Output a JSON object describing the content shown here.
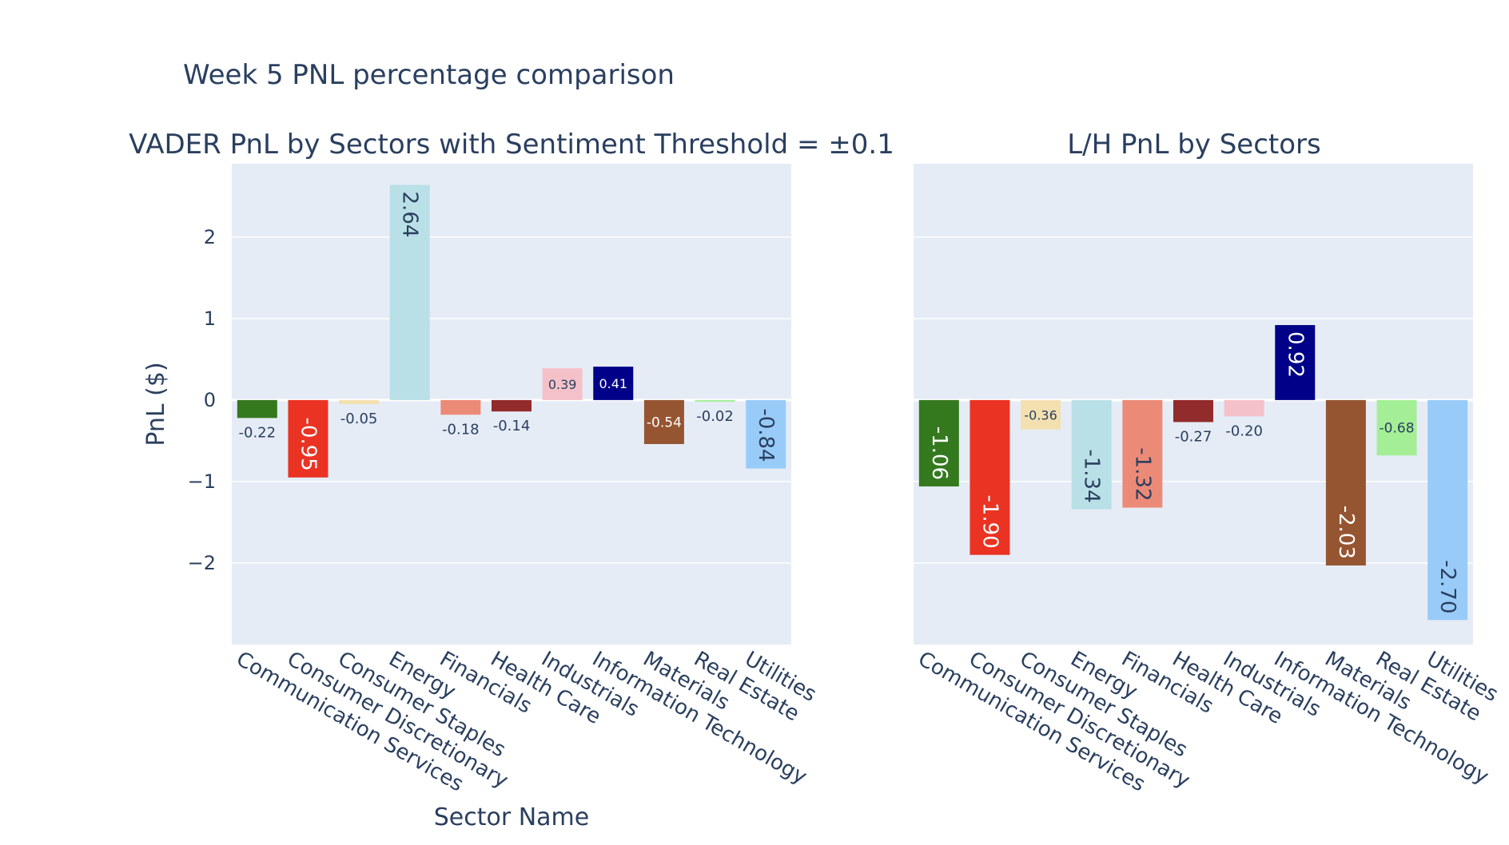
{
  "figure": {
    "title": "Week 5 PNL percentage comparison",
    "colors": {
      "plot_bg": "#e5ecf6",
      "grid": "#ffffff",
      "text": "#2a3f5f"
    }
  },
  "chart_data": [
    {
      "type": "bar",
      "title": "VADER PnL by Sectors with Sentiment Threshold = ±0.1",
      "xlabel": "Sector Name",
      "ylabel": "PnL ($)",
      "ylim": [
        -3,
        2.9
      ],
      "yticks": [
        -2,
        -1,
        0,
        1,
        2
      ],
      "ytick_labels": [
        "−2",
        "−1",
        "0",
        "1",
        "2"
      ],
      "grid": true,
      "categories": [
        "Communication Services",
        "Consumer Discretionary",
        "Consumer Staples",
        "Energy",
        "Financials",
        "Health Care",
        "Industrials",
        "Information Technology",
        "Materials",
        "Real Estate",
        "Utilities"
      ],
      "values": [
        -0.22,
        -0.95,
        -0.05,
        2.64,
        -0.18,
        -0.14,
        0.39,
        0.41,
        -0.54,
        -0.02,
        -0.84
      ],
      "data_labels": [
        "-0.22",
        "-0.95",
        "-0.05",
        "2.64",
        "-0.18",
        "-0.14",
        "0.39",
        "0.41",
        "-0.54",
        "-0.02",
        "-0.84"
      ],
      "bar_colors": [
        "#35791f",
        "#ea3323",
        "#f3e0b0",
        "#b9e0e6",
        "#ec8a78",
        "#922b2b",
        "#f5c1c9",
        "#000088",
        "#965531",
        "#a4ef96",
        "#99cbf8"
      ]
    },
    {
      "type": "bar",
      "title": "L/H PnL by Sectors",
      "xlabel": "",
      "ylabel": "",
      "ylim": [
        -3,
        2.9
      ],
      "yticks": [
        -2,
        -1,
        0,
        1,
        2
      ],
      "ytick_labels": [],
      "grid": true,
      "categories": [
        "Communication Services",
        "Consumer Discretionary",
        "Consumer Staples",
        "Energy",
        "Financials",
        "Health Care",
        "Industrials",
        "Information Technology",
        "Materials",
        "Real Estate",
        "Utilities"
      ],
      "values": [
        -1.06,
        -1.9,
        -0.36,
        -1.34,
        -1.32,
        -0.27,
        -0.2,
        0.92,
        -2.03,
        -0.68,
        -2.7
      ],
      "data_labels": [
        "-1.06",
        "-1.90",
        "-0.36",
        "-1.34",
        "-1.32",
        "-0.27",
        "-0.20",
        "0.92",
        "-2.03",
        "-0.68",
        "-2.70"
      ],
      "bar_colors": [
        "#35791f",
        "#ea3323",
        "#f3e0b0",
        "#b9e0e6",
        "#ec8a78",
        "#922b2b",
        "#f5c1c9",
        "#000088",
        "#965531",
        "#a4ef96",
        "#99cbf8"
      ]
    }
  ]
}
